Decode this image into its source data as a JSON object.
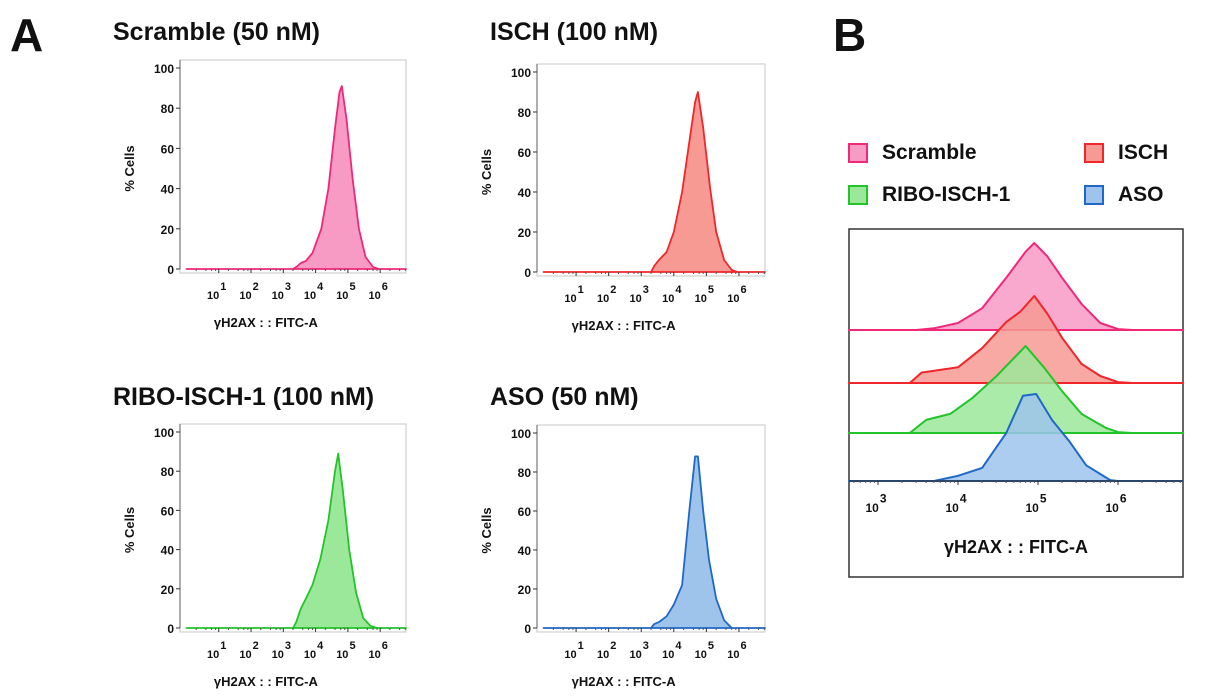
{
  "panel_labels": {
    "a": "A",
    "b": "B"
  },
  "colors": {
    "scramble": "#f0287a",
    "isch": "#f0262a",
    "ribo": "#22c42a",
    "aso": "#1f68c8"
  },
  "fills": {
    "scramble": "#f79ac4",
    "isch": "#f79a94",
    "ribo": "#9ce89a",
    "aso": "#9ec4ec"
  },
  "chart_data": [
    {
      "type": "area",
      "title": "Scramble (50 nM)",
      "xlabel": "γH2AX : : FITC-A",
      "ylabel": "% Cells",
      "x_scale": "log",
      "x_ticks": [
        "1",
        "2",
        "3",
        "4",
        "5",
        "6"
      ],
      "y_ticks": [
        "0",
        "20",
        "40",
        "60",
        "80",
        "100"
      ],
      "ylim": [
        0,
        100
      ],
      "color_key": "scramble",
      "points": [
        [
          1,
          0
        ],
        [
          2000,
          0
        ],
        [
          2500,
          1
        ],
        [
          3500,
          3
        ],
        [
          5000,
          4
        ],
        [
          8000,
          8
        ],
        [
          15000,
          20
        ],
        [
          25000,
          40
        ],
        [
          40000,
          70
        ],
        [
          55000,
          88
        ],
        [
          65000,
          91
        ],
        [
          90000,
          75
        ],
        [
          140000,
          45
        ],
        [
          220000,
          20
        ],
        [
          350000,
          6
        ],
        [
          600000,
          1
        ],
        [
          900000,
          0
        ],
        [
          5000000,
          0
        ]
      ]
    },
    {
      "type": "area",
      "title": "ISCH (100 nM)",
      "xlabel": "γH2AX : : FITC-A",
      "ylabel": "% Cells",
      "x_scale": "log",
      "x_ticks": [
        "1",
        "2",
        "3",
        "4",
        "5",
        "6"
      ],
      "y_ticks": [
        "0",
        "20",
        "40",
        "60",
        "80",
        "100"
      ],
      "ylim": [
        0,
        100
      ],
      "color_key": "isch",
      "points": [
        [
          1,
          0
        ],
        [
          2000,
          0
        ],
        [
          2500,
          3
        ],
        [
          3500,
          6
        ],
        [
          6000,
          10
        ],
        [
          10000,
          20
        ],
        [
          18000,
          40
        ],
        [
          30000,
          65
        ],
        [
          45000,
          85
        ],
        [
          55000,
          90
        ],
        [
          80000,
          72
        ],
        [
          130000,
          42
        ],
        [
          200000,
          20
        ],
        [
          350000,
          6
        ],
        [
          600000,
          1
        ],
        [
          900000,
          0
        ],
        [
          5000000,
          0
        ]
      ]
    },
    {
      "type": "area",
      "title": "RIBO-ISCH-1 (100 nM)",
      "xlabel": "γH2AX : : FITC-A",
      "ylabel": "% Cells",
      "x_scale": "log",
      "x_ticks": [
        "1",
        "2",
        "3",
        "4",
        "5",
        "6"
      ],
      "y_ticks": [
        "0",
        "20",
        "40",
        "60",
        "80",
        "100"
      ],
      "ylim": [
        0,
        100
      ],
      "color_key": "ribo",
      "points": [
        [
          1,
          0
        ],
        [
          2000,
          0
        ],
        [
          2500,
          3
        ],
        [
          3500,
          10
        ],
        [
          5000,
          15
        ],
        [
          8000,
          22
        ],
        [
          14000,
          35
        ],
        [
          25000,
          55
        ],
        [
          40000,
          80
        ],
        [
          50000,
          89
        ],
        [
          70000,
          70
        ],
        [
          110000,
          40
        ],
        [
          180000,
          18
        ],
        [
          300000,
          5
        ],
        [
          500000,
          1
        ],
        [
          800000,
          0
        ],
        [
          5000000,
          0
        ]
      ]
    },
    {
      "type": "area",
      "title": "ASO (50 nM)",
      "xlabel": "γH2AX : : FITC-A",
      "ylabel": "% Cells",
      "x_scale": "log",
      "x_ticks": [
        "1",
        "2",
        "3",
        "4",
        "5",
        "6"
      ],
      "y_ticks": [
        "0",
        "20",
        "40",
        "60",
        "80",
        "100"
      ],
      "ylim": [
        0,
        100
      ],
      "color_key": "aso",
      "points": [
        [
          1,
          0
        ],
        [
          2000,
          0
        ],
        [
          2500,
          2
        ],
        [
          3500,
          3
        ],
        [
          6000,
          6
        ],
        [
          10000,
          12
        ],
        [
          18000,
          22
        ],
        [
          30000,
          60
        ],
        [
          45000,
          88
        ],
        [
          55000,
          88
        ],
        [
          80000,
          60
        ],
        [
          120000,
          35
        ],
        [
          200000,
          15
        ],
        [
          350000,
          4
        ],
        [
          600000,
          0
        ],
        [
          5000000,
          0
        ]
      ]
    },
    {
      "type": "area",
      "subtype": "offset-histogram",
      "xlabel": "γH2AX : : FITC-A",
      "x_scale": "log",
      "x_ticks": [
        "3",
        "4",
        "5",
        "6"
      ],
      "legend": "top",
      "series": [
        {
          "name": "Scramble",
          "color_key": "scramble",
          "points": [
            [
              400,
              0
            ],
            [
              3000,
              0
            ],
            [
              5000,
              2
            ],
            [
              10000,
              8
            ],
            [
              20000,
              25
            ],
            [
              40000,
              60
            ],
            [
              70000,
              90
            ],
            [
              90000,
              100
            ],
            [
              130000,
              85
            ],
            [
              200000,
              60
            ],
            [
              350000,
              30
            ],
            [
              600000,
              8
            ],
            [
              1000000,
              1
            ],
            [
              1500000,
              0
            ],
            [
              6000000,
              0
            ]
          ]
        },
        {
          "name": "ISCH",
          "color_key": "isch",
          "points": [
            [
              400,
              0
            ],
            [
              2500,
              0
            ],
            [
              3500,
              12
            ],
            [
              10000,
              18
            ],
            [
              20000,
              40
            ],
            [
              40000,
              70
            ],
            [
              60000,
              82
            ],
            [
              90000,
              100
            ],
            [
              130000,
              80
            ],
            [
              200000,
              52
            ],
            [
              350000,
              22
            ],
            [
              600000,
              8
            ],
            [
              1000000,
              1
            ],
            [
              1500000,
              0
            ],
            [
              6000000,
              0
            ]
          ]
        },
        {
          "name": "RIBO-ISCH-1",
          "color_key": "ribo",
          "points": [
            [
              400,
              0
            ],
            [
              2500,
              0
            ],
            [
              4000,
              15
            ],
            [
              8000,
              22
            ],
            [
              15000,
              40
            ],
            [
              30000,
              65
            ],
            [
              70000,
              100
            ],
            [
              120000,
              75
            ],
            [
              200000,
              48
            ],
            [
              350000,
              22
            ],
            [
              700000,
              6
            ],
            [
              1000000,
              1
            ],
            [
              1500000,
              0
            ],
            [
              6000000,
              0
            ]
          ]
        },
        {
          "name": "ASO",
          "color_key": "aso",
          "points": [
            [
              400,
              0
            ],
            [
              5000,
              0
            ],
            [
              10000,
              6
            ],
            [
              20000,
              15
            ],
            [
              40000,
              55
            ],
            [
              65000,
              98
            ],
            [
              95000,
              100
            ],
            [
              150000,
              70
            ],
            [
              250000,
              45
            ],
            [
              400000,
              18
            ],
            [
              800000,
              1
            ],
            [
              1000000,
              0
            ],
            [
              6000000,
              0
            ]
          ]
        }
      ]
    }
  ]
}
